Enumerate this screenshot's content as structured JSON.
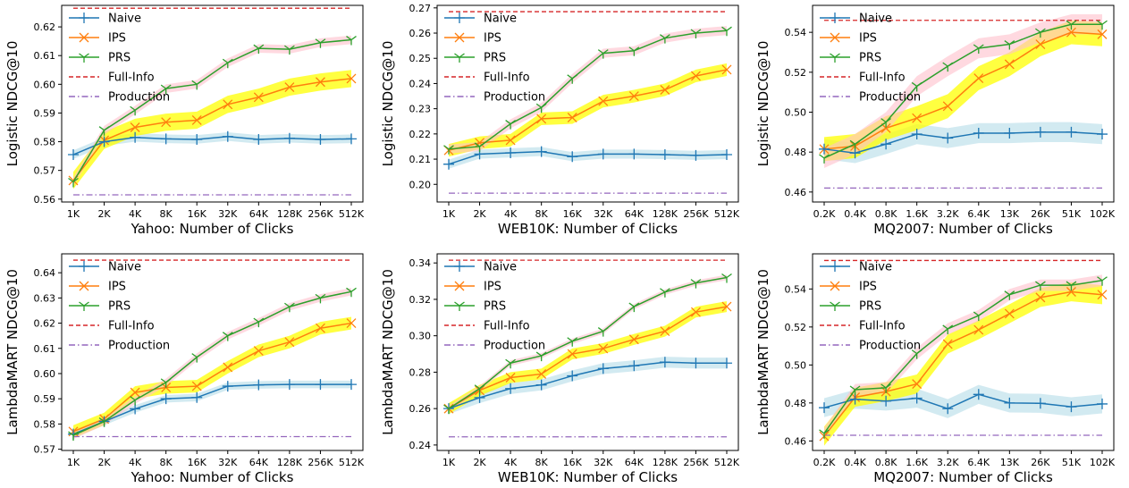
{
  "colors": {
    "naive": "#1f77b4",
    "ips": "#ff7f0e",
    "prs": "#2ca02c",
    "full_info": "#d62728",
    "production": "#9467bd",
    "naive_band": "#add8e6",
    "ips_band": "#ffff00",
    "prs_band": "#ffc0cb"
  },
  "legend": {
    "naive": "Naive",
    "ips": "IPS",
    "prs": "PRS",
    "full_info": "Full-Info",
    "production": "Production"
  },
  "chart_data": [
    {
      "type": "line",
      "xlabel": "Yahoo: Number of Clicks",
      "ylabel": "Logistic NDCG@10",
      "categories": [
        "1K",
        "2K",
        "4K",
        "8K",
        "16K",
        "32K",
        "64K",
        "128K",
        "256K",
        "512K"
      ],
      "ylim": [
        0.559,
        0.6275
      ],
      "yticks": [
        0.56,
        0.57,
        0.58,
        0.59,
        0.6,
        0.61,
        0.62
      ],
      "ytick_labels": [
        "0.56",
        "0.57",
        "0.58",
        "0.59",
        "0.60",
        "0.61",
        "0.62"
      ],
      "legend_position": "top-left",
      "series": [
        {
          "key": "naive",
          "values": [
            0.5755,
            0.58,
            0.5815,
            0.581,
            0.5808,
            0.5818,
            0.5808,
            0.5812,
            0.5808,
            0.581
          ],
          "band": 0.0015
        },
        {
          "key": "ips",
          "values": [
            0.5665,
            0.5805,
            0.585,
            0.5868,
            0.5875,
            0.593,
            0.5955,
            0.599,
            0.6008,
            0.602
          ],
          "band": 0.003
        },
        {
          "key": "prs",
          "values": [
            0.566,
            0.584,
            0.591,
            0.5985,
            0.6,
            0.6075,
            0.6125,
            0.6122,
            0.6145,
            0.6155
          ],
          "band": 0.0015
        }
      ],
      "full_info": 0.6265,
      "production": 0.5615
    },
    {
      "type": "line",
      "xlabel": "WEB10K: Number of Clicks",
      "ylabel": "Logistic NDCG@10",
      "categories": [
        "1K",
        "2K",
        "4K",
        "8K",
        "16K",
        "32K",
        "64K",
        "128K",
        "256K",
        "512K"
      ],
      "ylim": [
        0.193,
        0.271
      ],
      "yticks": [
        0.2,
        0.21,
        0.22,
        0.23,
        0.24,
        0.25,
        0.26,
        0.27
      ],
      "ytick_labels": [
        "0.20",
        "0.21",
        "0.22",
        "0.23",
        "0.24",
        "0.25",
        "0.26",
        "0.27"
      ],
      "legend_position": "top-left",
      "series": [
        {
          "key": "naive",
          "values": [
            0.208,
            0.212,
            0.2125,
            0.213,
            0.211,
            0.212,
            0.212,
            0.2118,
            0.2115,
            0.2118
          ],
          "band": 0.0018
        },
        {
          "key": "ips",
          "values": [
            0.2135,
            0.2165,
            0.2175,
            0.226,
            0.2265,
            0.233,
            0.235,
            0.2375,
            0.243,
            0.2455
          ],
          "band": 0.0025
        },
        {
          "key": "prs",
          "values": [
            0.214,
            0.215,
            0.224,
            0.2305,
            0.242,
            0.252,
            0.253,
            0.258,
            0.26,
            0.261
          ],
          "band": 0.0018
        }
      ],
      "full_info": 0.2685,
      "production": 0.1965
    },
    {
      "type": "line",
      "xlabel": "MQ2007: Number of Clicks",
      "ylabel": "Logistic NDCG@10",
      "categories": [
        "0.2K",
        "0.4K",
        "0.8K",
        "1.6K",
        "3.2K",
        "6.4K",
        "13K",
        "26K",
        "51K",
        "102K"
      ],
      "ylim": [
        0.455,
        0.5535
      ],
      "yticks": [
        0.46,
        0.48,
        0.5,
        0.52,
        0.54
      ],
      "ytick_labels": [
        "0.46",
        "0.48",
        "0.50",
        "0.52",
        "0.54"
      ],
      "legend_position": "top-left",
      "series": [
        {
          "key": "naive",
          "values": [
            0.4815,
            0.4795,
            0.484,
            0.489,
            0.487,
            0.4895,
            0.4895,
            0.49,
            0.49,
            0.489
          ],
          "band": 0.005
        },
        {
          "key": "ips",
          "values": [
            0.4815,
            0.483,
            0.492,
            0.497,
            0.503,
            0.517,
            0.524,
            0.534,
            0.54,
            0.539
          ],
          "band": 0.006
        },
        {
          "key": "prs",
          "values": [
            0.477,
            0.484,
            0.495,
            0.513,
            0.523,
            0.532,
            0.534,
            0.54,
            0.544,
            0.544
          ],
          "band": 0.005
        }
      ],
      "full_info": 0.546,
      "production": 0.462
    },
    {
      "type": "line",
      "xlabel": "Yahoo: Number of Clicks",
      "ylabel": "LambdaMART NDCG@10",
      "categories": [
        "1K",
        "2K",
        "4K",
        "8K",
        "16K",
        "32K",
        "64K",
        "128K",
        "256K",
        "512K"
      ],
      "ylim": [
        0.5695,
        0.6475
      ],
      "yticks": [
        0.57,
        0.58,
        0.59,
        0.6,
        0.61,
        0.62,
        0.63,
        0.64
      ],
      "ytick_labels": [
        "0.57",
        "0.58",
        "0.59",
        "0.60",
        "0.61",
        "0.62",
        "0.63",
        "0.64"
      ],
      "legend_position": "top-left",
      "series": [
        {
          "key": "naive",
          "values": [
            0.576,
            0.581,
            0.586,
            0.59,
            0.5905,
            0.595,
            0.5955,
            0.5957,
            0.5957,
            0.5957
          ],
          "band": 0.0015
        },
        {
          "key": "ips",
          "values": [
            0.577,
            0.582,
            0.5925,
            0.5945,
            0.595,
            0.6025,
            0.609,
            0.6125,
            0.618,
            0.62
          ],
          "band": 0.0025
        },
        {
          "key": "prs",
          "values": [
            0.5755,
            0.581,
            0.5895,
            0.5965,
            0.6065,
            0.615,
            0.6205,
            0.6265,
            0.63,
            0.6325
          ],
          "band": 0.0015
        }
      ],
      "full_info": 0.645,
      "production": 0.575
    },
    {
      "type": "line",
      "xlabel": "WEB10K: Number of Clicks",
      "ylabel": "LambdaMART NDCG@10",
      "categories": [
        "1K",
        "2K",
        "4K",
        "8K",
        "16K",
        "32K",
        "64K",
        "128K",
        "256K",
        "512K"
      ],
      "ylim": [
        0.237,
        0.345
      ],
      "yticks": [
        0.24,
        0.26,
        0.28,
        0.3,
        0.32,
        0.34
      ],
      "ytick_labels": [
        "0.24",
        "0.26",
        "0.28",
        "0.30",
        "0.32",
        "0.34"
      ],
      "legend_position": "top-left",
      "series": [
        {
          "key": "naive",
          "values": [
            0.26,
            0.266,
            0.271,
            0.273,
            0.278,
            0.282,
            0.2835,
            0.2855,
            0.285,
            0.285
          ],
          "band": 0.003
        },
        {
          "key": "ips",
          "values": [
            0.26,
            0.27,
            0.277,
            0.279,
            0.29,
            0.293,
            0.298,
            0.3025,
            0.313,
            0.316
          ],
          "band": 0.003
        },
        {
          "key": "prs",
          "values": [
            0.26,
            0.271,
            0.285,
            0.289,
            0.297,
            0.3025,
            0.316,
            0.324,
            0.329,
            0.332
          ],
          "band": 0.0015
        }
      ],
      "full_info": 0.3415,
      "production": 0.2445
    },
    {
      "type": "line",
      "xlabel": "MQ2007: Number of Clicks",
      "ylabel": "LambdaMART NDCG@10",
      "categories": [
        "0.2K",
        "0.4K",
        "0.8K",
        "1.6K",
        "3.2K",
        "6.4K",
        "13K",
        "26K",
        "51K",
        "102K"
      ],
      "ylim": [
        0.455,
        0.5585
      ],
      "yticks": [
        0.46,
        0.48,
        0.5,
        0.52,
        0.54
      ],
      "ytick_labels": [
        "0.46",
        "0.48",
        "0.50",
        "0.52",
        "0.54"
      ],
      "legend_position": "top-left",
      "series": [
        {
          "key": "naive",
          "values": [
            0.4775,
            0.482,
            0.481,
            0.4825,
            0.477,
            0.4845,
            0.48,
            0.4798,
            0.478,
            0.4795
          ],
          "band": 0.005
        },
        {
          "key": "ips",
          "values": [
            0.4625,
            0.483,
            0.486,
            0.49,
            0.511,
            0.5185,
            0.527,
            0.5355,
            0.5385,
            0.537
          ],
          "band": 0.005
        },
        {
          "key": "prs",
          "values": [
            0.464,
            0.487,
            0.488,
            0.506,
            0.519,
            0.526,
            0.537,
            0.542,
            0.542,
            0.5445
          ],
          "band": 0.003
        }
      ],
      "full_info": 0.555,
      "production": 0.463
    }
  ]
}
